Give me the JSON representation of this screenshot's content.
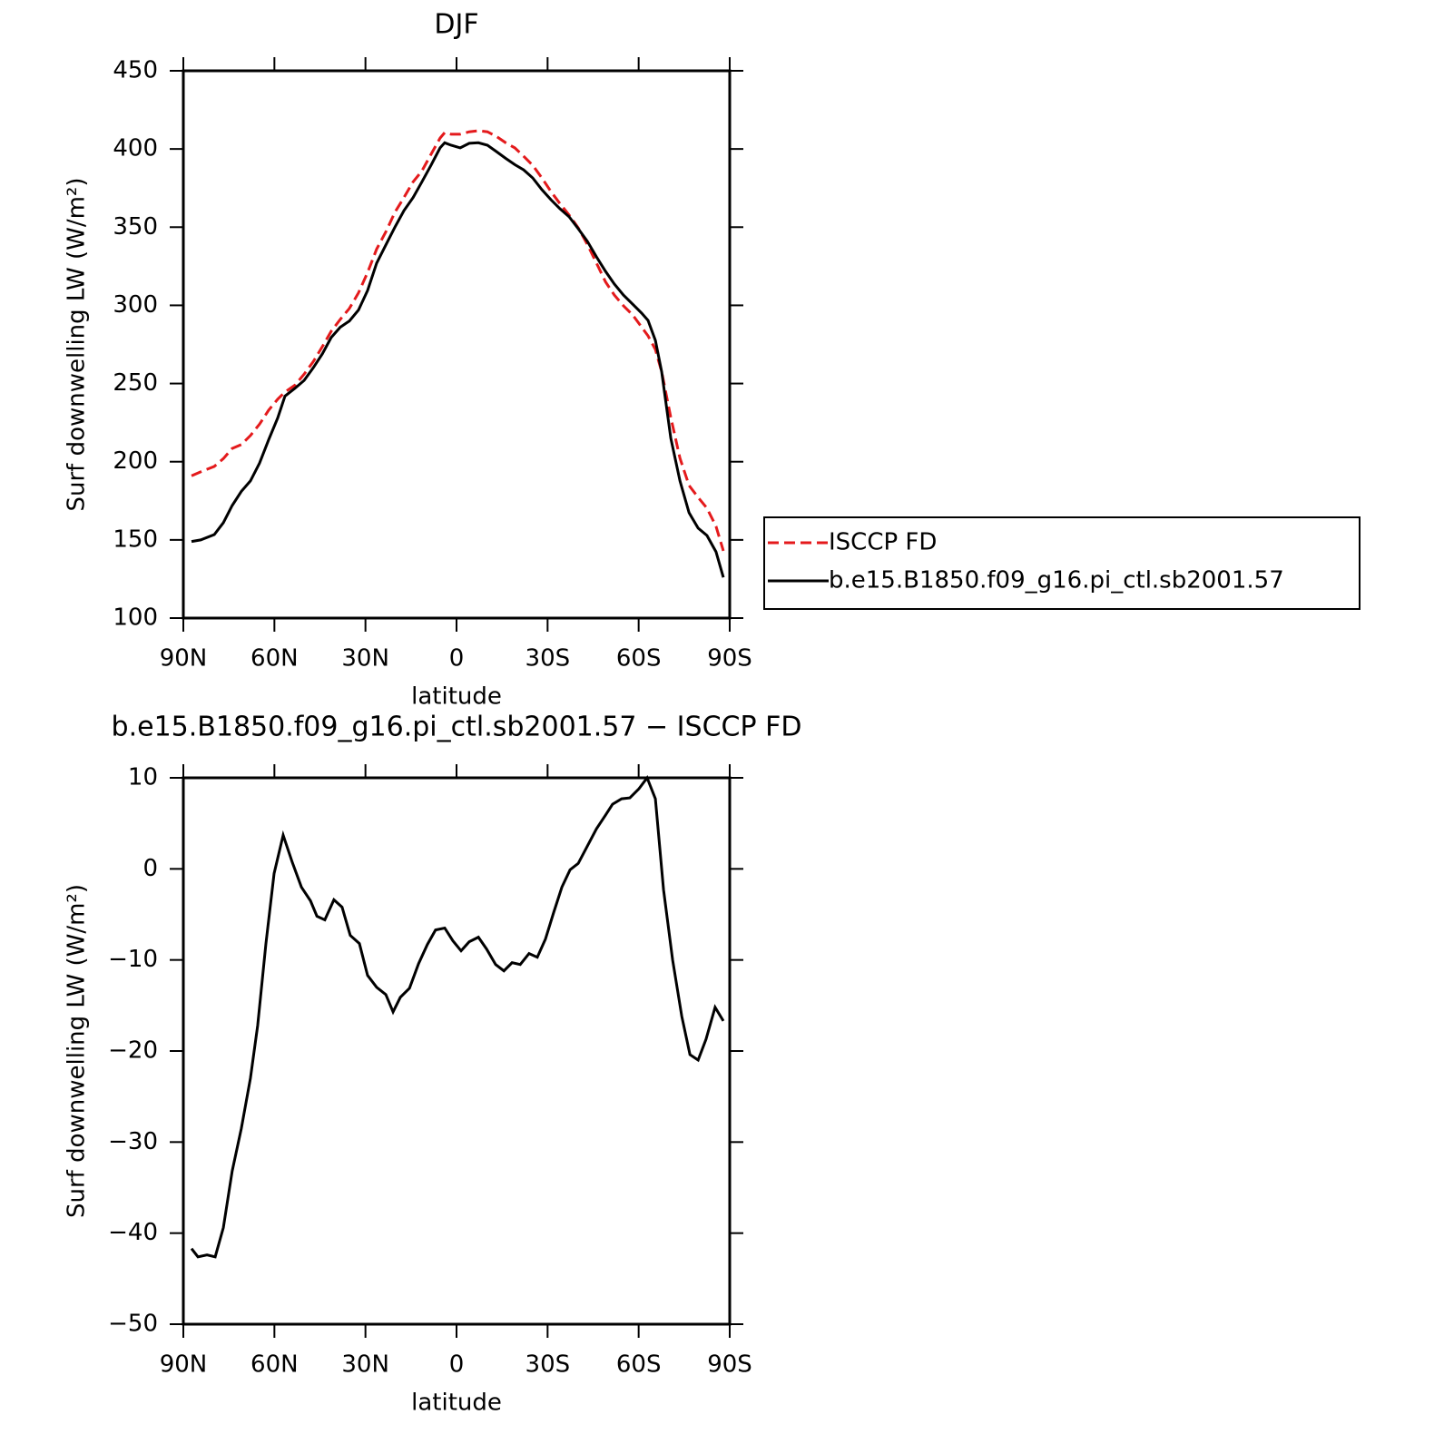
{
  "chart_data": [
    {
      "type": "line",
      "title": "DJF",
      "xlabel": "latitude",
      "ylabel": "Surf downwelling LW (W/m²)",
      "x": [
        87.3,
        84.3,
        79.8,
        76.8,
        73.9,
        70.9,
        67.9,
        64.9,
        61.9,
        58.9,
        56.5,
        53.2,
        50.2,
        47.2,
        44.2,
        41.3,
        38.3,
        35.3,
        32.3,
        29.3,
        26.3,
        23.3,
        20.3,
        17.3,
        14.3,
        11.4,
        8.4,
        5.4,
        3.9,
        1.8,
        -1.2,
        -4.2,
        -7.2,
        -10.2,
        -13.2,
        -16.2,
        -19.2,
        -22.1,
        -25.1,
        -28.1,
        -31.1,
        -34.1,
        -37.1,
        -40.1,
        -43.1,
        -46.1,
        -49.1,
        -52.0,
        -55.0,
        -58.0,
        -61.0,
        -63.1,
        -65.5,
        -67.6,
        -70.6,
        -73.6,
        -76.6,
        -79.6,
        -82.5,
        -85.5,
        -87.9
      ],
      "series": [
        {
          "name": "ISCCP FD",
          "color": "#e41a1c",
          "linestyle": "dashed",
          "values": [
            191,
            193.5,
            197,
            202,
            208.5,
            211,
            216.7,
            224,
            233,
            240,
            244.6,
            249,
            256,
            264,
            273.6,
            283.4,
            291,
            298,
            308,
            321,
            336,
            347,
            359.5,
            369,
            379,
            386,
            396.6,
            407,
            410.5,
            409.4,
            409.4,
            411,
            411.7,
            411,
            408,
            404,
            400.7,
            395.4,
            389.6,
            381.5,
            372.8,
            365,
            357.7,
            349.6,
            339,
            327,
            315,
            306.6,
            299.7,
            293.9,
            286,
            280.5,
            271.8,
            257.3,
            228.3,
            202.2,
            184.8,
            177.2,
            170.3,
            158.7,
            143
          ]
        },
        {
          "name": "b.e15.B1850.f09_g16.pi_ctl.sb2001.57",
          "color": "#000000",
          "linestyle": "solid",
          "values": [
            149,
            150,
            153.4,
            161,
            172,
            181,
            187.7,
            199,
            214,
            228,
            242,
            247,
            252,
            260,
            269,
            279.4,
            286,
            290,
            297,
            309.5,
            327,
            338.6,
            350,
            360.6,
            369,
            379,
            389.6,
            400.7,
            404,
            402.4,
            400.7,
            403.6,
            404,
            402.4,
            398.3,
            394,
            390,
            386.7,
            381.5,
            374,
            367.6,
            361.8,
            356.6,
            349,
            341,
            331,
            321.7,
            313.6,
            306.6,
            300.8,
            295,
            290.4,
            277.6,
            257.3,
            215,
            187.7,
            167.4,
            157.5,
            152.8,
            142.4,
            126
          ]
        }
      ],
      "xlim": [
        90,
        -90
      ],
      "xticks": [
        {
          "value": 90,
          "label": "90N"
        },
        {
          "value": 60,
          "label": "60N"
        },
        {
          "value": 30,
          "label": "30N"
        },
        0,
        {
          "value": -30,
          "label": "30S"
        },
        {
          "value": -60,
          "label": "60S"
        },
        {
          "value": -90,
          "label": "90S"
        }
      ],
      "ylim": [
        100,
        450
      ],
      "yticks": [
        100,
        150,
        200,
        250,
        300,
        350,
        400,
        450
      ],
      "legend": "right"
    },
    {
      "type": "line",
      "title": "b.e15.B1850.f09_g16.pi_ctl.sb2001.57 − ISCCP FD",
      "xlabel": "latitude",
      "ylabel": "Surf downwelling LW (W/m²)",
      "x": [
        87.3,
        85.2,
        82.2,
        79.5,
        76.8,
        73.9,
        70.9,
        67.9,
        65.5,
        62.8,
        60.1,
        57.1,
        54.1,
        51.1,
        48.1,
        46,
        43.4,
        40.4,
        37.7,
        35,
        32,
        29.3,
        26.3,
        23.3,
        20.9,
        18.5,
        15.5,
        12.5,
        9.6,
        6.9,
        3.9,
        1.2,
        -1.5,
        -4.2,
        -7.2,
        -9.9,
        -12.9,
        -15.6,
        -18.3,
        -21,
        -23.9,
        -26.6,
        -29.3,
        -32,
        -34.7,
        -37.4,
        -40.1,
        -43.1,
        -46.1,
        -49.1,
        -51.4,
        -54.4,
        -57.1,
        -60.1,
        -62.8,
        -65.5,
        -68.2,
        -71.2,
        -74.2,
        -76.9,
        -79.6,
        -82.2,
        -85.2,
        -87.9
      ],
      "series": [
        {
          "color": "#000000",
          "linestyle": "solid",
          "values": [
            -41.7,
            -42.6,
            -42.4,
            -42.6,
            -39.4,
            -33.2,
            -28.5,
            -23,
            -17.2,
            -8.2,
            -0.5,
            3.7,
            0.7,
            -2,
            -3.5,
            -5.2,
            -5.6,
            -3.4,
            -4.2,
            -7.3,
            -8.2,
            -11.7,
            -13,
            -13.8,
            -15.7,
            -14.1,
            -13.1,
            -10.4,
            -8.3,
            -6.7,
            -6.5,
            -7.9,
            -9,
            -8,
            -7.5,
            -8.8,
            -10.5,
            -11.2,
            -10.3,
            -10.5,
            -9.3,
            -9.7,
            -7.7,
            -4.8,
            -2,
            -0.1,
            0.6,
            2.5,
            4.4,
            5.9,
            7.1,
            7.7,
            7.8,
            8.8,
            10,
            7.7,
            -2.3,
            -10,
            -16.2,
            -20.4,
            -21,
            -18.7,
            -15.2,
            -16.7
          ]
        }
      ],
      "xlim": [
        90,
        -90
      ],
      "xticks": [
        {
          "value": 90,
          "label": "90N"
        },
        {
          "value": 60,
          "label": "60N"
        },
        {
          "value": 30,
          "label": "30N"
        },
        0,
        {
          "value": -30,
          "label": "30S"
        },
        {
          "value": -60,
          "label": "60S"
        },
        {
          "value": -90,
          "label": "90S"
        }
      ],
      "ylim": [
        -50,
        10
      ],
      "yticks": [
        {
          "value": -50,
          "label": "−50"
        },
        {
          "value": -40,
          "label": "−40"
        },
        {
          "value": -30,
          "label": "−30"
        },
        {
          "value": -20,
          "label": "−20"
        },
        {
          "value": -10,
          "label": "−10"
        },
        0,
        10
      ]
    }
  ]
}
